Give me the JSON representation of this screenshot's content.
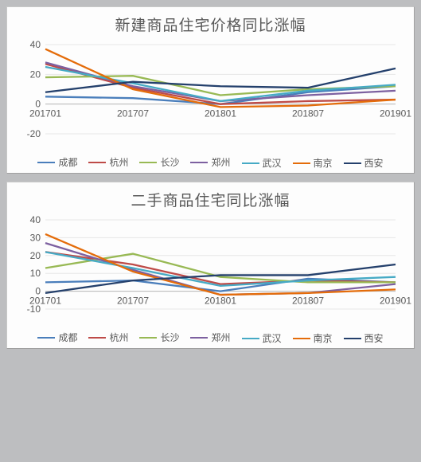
{
  "charts": [
    {
      "title": "新建商品住宅价格同比涨幅",
      "x_labels": [
        "201701",
        "201707",
        "201801",
        "201807",
        "201901"
      ],
      "ylim": [
        -20,
        40
      ],
      "ytick_step": 20,
      "background_color": "#fdfdfd",
      "grid_color": "#e6e6e6",
      "axis_color": "#b7b7b7",
      "title_fontsize": 19,
      "label_fontsize": 12,
      "line_width": 2.3,
      "series": [
        {
          "name": "成都",
          "color": "#4a7ebb",
          "values": [
            5,
            4,
            0,
            8,
            12
          ]
        },
        {
          "name": "杭州",
          "color": "#be4b48",
          "values": [
            27,
            11,
            0,
            2,
            3
          ]
        },
        {
          "name": "长沙",
          "color": "#98b954",
          "values": [
            18,
            19,
            6,
            10,
            12
          ]
        },
        {
          "name": "郑州",
          "color": "#7d60a0",
          "values": [
            28,
            12,
            2,
            6,
            9
          ]
        },
        {
          "name": "武汉",
          "color": "#46aac5",
          "values": [
            25,
            14,
            2,
            9,
            13
          ]
        },
        {
          "name": "南京",
          "color": "#e46c0a",
          "values": [
            37,
            10,
            -2,
            -1,
            3
          ]
        },
        {
          "name": "西安",
          "color": "#24406c",
          "values": [
            8,
            15,
            12,
            11,
            24
          ]
        }
      ]
    },
    {
      "title": "二手商品住宅同比涨幅",
      "x_labels": [
        "201701",
        "201707",
        "201801",
        "201807",
        "201901"
      ],
      "ylim": [
        -10,
        40
      ],
      "ytick_step": 10,
      "background_color": "#fdfdfd",
      "grid_color": "#e6e6e6",
      "axis_color": "#b7b7b7",
      "title_fontsize": 19,
      "label_fontsize": 12,
      "line_width": 2.3,
      "series": [
        {
          "name": "成都",
          "color": "#4a7ebb",
          "values": [
            5,
            6,
            0,
            7,
            5
          ]
        },
        {
          "name": "杭州",
          "color": "#be4b48",
          "values": [
            22,
            15,
            4,
            6,
            5
          ]
        },
        {
          "name": "长沙",
          "color": "#98b954",
          "values": [
            13,
            21,
            8,
            5,
            5
          ]
        },
        {
          "name": "郑州",
          "color": "#7d60a0",
          "values": [
            27,
            12,
            -2,
            -1,
            4
          ]
        },
        {
          "name": "武汉",
          "color": "#46aac5",
          "values": [
            22,
            13,
            3,
            6,
            8
          ]
        },
        {
          "name": "南京",
          "color": "#e46c0a",
          "values": [
            32,
            11,
            -2,
            -1,
            1
          ]
        },
        {
          "name": "西安",
          "color": "#24406c",
          "values": [
            -1,
            6,
            9,
            9,
            15
          ]
        }
      ]
    }
  ]
}
